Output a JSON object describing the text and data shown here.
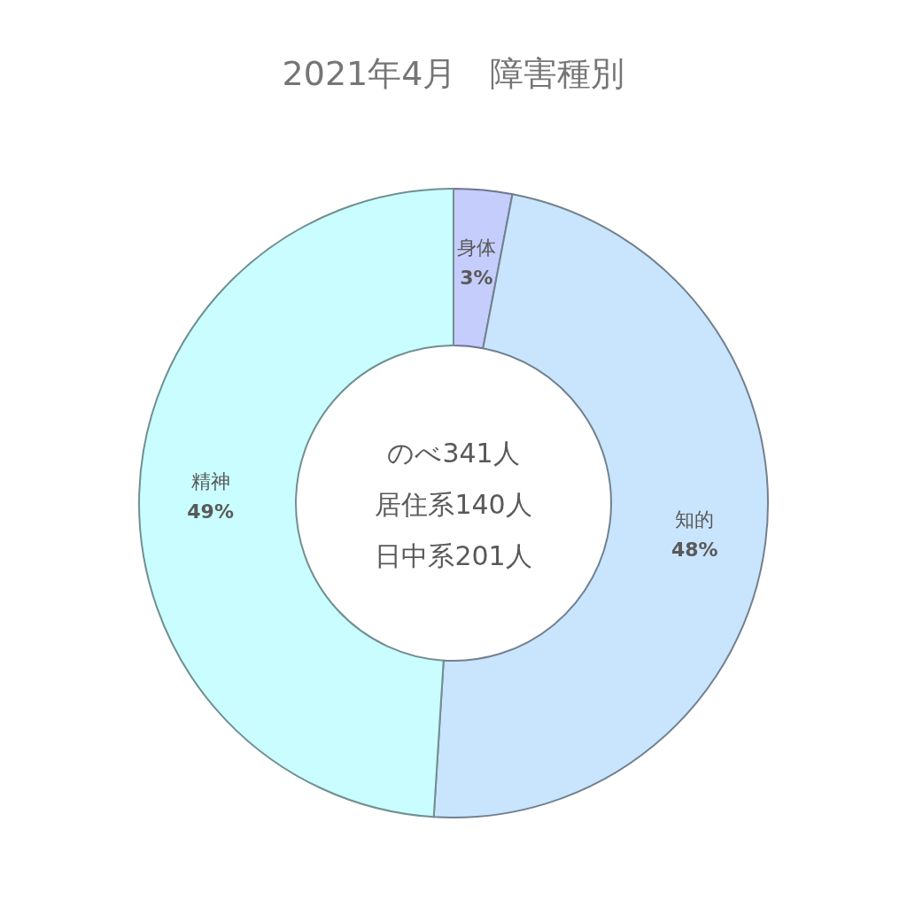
{
  "chart_data": {
    "type": "donut",
    "title": "2021年4月　障害種別",
    "categories": [
      "身体",
      "知的",
      "精神"
    ],
    "values": [
      3,
      48,
      49
    ],
    "colors": [
      "#c4cdfb",
      "#c9e5fd",
      "#c9fdff"
    ],
    "value_labels": [
      "3%",
      "48%",
      "49%"
    ],
    "annotations": [
      "のべ341人",
      "居住系140人",
      "日中系201人"
    ]
  }
}
